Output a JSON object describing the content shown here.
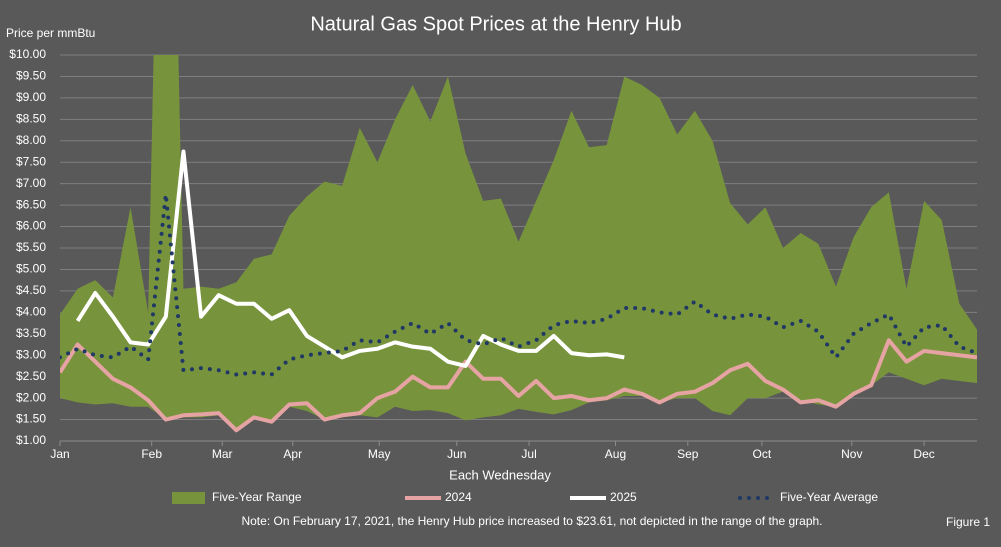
{
  "chart_data": {
    "type": "range_line",
    "title": "Natural Gas Spot Prices at the Henry Hub",
    "y_label": "Price per mmBtu",
    "x_label": "Each Wednesday",
    "note": "Note: On February 17, 2021,  the Henry Hub price increased to $23.61,  not depicted in the range of the graph.",
    "figure_label": "Figure 1",
    "background": "#595959",
    "grid": true,
    "x": [
      0,
      1,
      2,
      3,
      4,
      5,
      6,
      7,
      8,
      9,
      10,
      11,
      12,
      13,
      14,
      15,
      16,
      17,
      18,
      19,
      20,
      21,
      22,
      23,
      24,
      25,
      26,
      27,
      28,
      29,
      30,
      31,
      32,
      33,
      34,
      35,
      36,
      37,
      38,
      39,
      40,
      41,
      42,
      43,
      44,
      45,
      46,
      47,
      48,
      49,
      50,
      51,
      52
    ],
    "xlim": [
      0,
      52
    ],
    "xticks": [
      {
        "value": 0,
        "label": "Jan"
      },
      {
        "value": 5.2,
        "label": "Feb"
      },
      {
        "value": 9.2,
        "label": "Mar"
      },
      {
        "value": 13.2,
        "label": "Apr"
      },
      {
        "value": 18.1,
        "label": "May"
      },
      {
        "value": 22.5,
        "label": "Jun"
      },
      {
        "value": 26.6,
        "label": "Jul"
      },
      {
        "value": 31.5,
        "label": "Aug"
      },
      {
        "value": 35.6,
        "label": "Sep"
      },
      {
        "value": 39.8,
        "label": "Oct"
      },
      {
        "value": 44.9,
        "label": "Nov"
      },
      {
        "value": 49.0,
        "label": "Dec"
      }
    ],
    "ylim": [
      1,
      10
    ],
    "yticks": [
      {
        "value": 1,
        "label": "$1.00"
      },
      {
        "value": 1.5,
        "label": "$1.50"
      },
      {
        "value": 2,
        "label": "$2.00"
      },
      {
        "value": 2.5,
        "label": "$2.50"
      },
      {
        "value": 3,
        "label": "$3.00"
      },
      {
        "value": 3.5,
        "label": "$3.50"
      },
      {
        "value": 4,
        "label": "$4.00"
      },
      {
        "value": 4.5,
        "label": "$4.50"
      },
      {
        "value": 5,
        "label": "$5.00"
      },
      {
        "value": 5.5,
        "label": "$5.50"
      },
      {
        "value": 6,
        "label": "$6.00"
      },
      {
        "value": 6.5,
        "label": "$6.50"
      },
      {
        "value": 7,
        "label": "$7.00"
      },
      {
        "value": 7.5,
        "label": "$7.50"
      },
      {
        "value": 8,
        "label": "$8.00"
      },
      {
        "value": 8.5,
        "label": "$8.50"
      },
      {
        "value": 9,
        "label": "$9.00"
      },
      {
        "value": 9.5,
        "label": "$9.50"
      },
      {
        "value": 10,
        "label": "$10.00"
      }
    ],
    "series": [
      {
        "name": "Five-Year Range",
        "kind": "range",
        "color": "#77933c",
        "high": [
          3.95,
          4.55,
          4.75,
          4.35,
          6.45,
          4.0,
          23.61,
          4.55,
          4.6,
          4.55,
          4.7,
          5.25,
          5.35,
          6.25,
          6.7,
          7.05,
          6.95,
          8.3,
          7.5,
          8.5,
          9.3,
          8.45,
          9.5,
          7.7,
          6.6,
          6.65,
          5.65,
          6.6,
          7.55,
          8.7,
          7.85,
          7.9,
          9.5,
          9.3,
          9.0,
          8.15,
          8.7,
          8.0,
          6.55,
          6.05,
          6.45,
          5.5,
          5.85,
          5.6,
          4.6,
          5.75,
          6.45,
          6.8,
          4.55,
          6.6,
          6.15,
          4.2,
          3.6
        ],
        "low": [
          2.0,
          1.9,
          1.85,
          1.88,
          1.8,
          1.8,
          1.5,
          1.55,
          1.55,
          1.6,
          1.25,
          1.55,
          1.45,
          1.8,
          1.7,
          1.5,
          1.55,
          1.6,
          1.55,
          1.8,
          1.7,
          1.72,
          1.65,
          1.48,
          1.55,
          1.6,
          1.75,
          1.68,
          1.62,
          1.72,
          1.9,
          1.95,
          2.05,
          2.05,
          1.9,
          2.0,
          2.0,
          1.7,
          1.6,
          2.0,
          2.0,
          2.15,
          1.95,
          1.85,
          1.8,
          2.05,
          2.3,
          2.6,
          2.45,
          2.3,
          2.45,
          2.4,
          2.35
        ]
      },
      {
        "name": "2024",
        "kind": "line",
        "color": "#e6a3a3",
        "dash": false,
        "values": [
          2.6,
          3.25,
          2.85,
          2.45,
          2.25,
          1.95,
          1.5,
          1.6,
          1.62,
          1.65,
          1.25,
          1.55,
          1.45,
          1.85,
          1.88,
          1.5,
          1.6,
          1.65,
          2.0,
          2.15,
          2.5,
          2.25,
          2.25,
          2.85,
          2.45,
          2.45,
          2.05,
          2.4,
          2.0,
          2.05,
          1.95,
          2.0,
          2.2,
          2.1,
          1.9,
          2.1,
          2.15,
          2.35,
          2.65,
          2.8,
          2.4,
          2.2,
          1.9,
          1.95,
          1.8,
          2.1,
          2.3,
          3.35,
          2.85,
          3.1,
          3.05,
          3.0,
          2.95
        ]
      },
      {
        "name": "2025",
        "kind": "line",
        "color": "#ffffff",
        "dash": false,
        "values": [
          null,
          3.8,
          4.45,
          3.9,
          3.3,
          3.25,
          3.9,
          7.75,
          3.9,
          4.4,
          4.2,
          4.2,
          3.85,
          4.05,
          3.45,
          3.2,
          2.95,
          3.1,
          3.15,
          3.3,
          3.2,
          3.15,
          2.85,
          2.75,
          3.45,
          3.25,
          3.1,
          3.1,
          3.45,
          3.05,
          3.0,
          3.02,
          2.95,
          null,
          null,
          null,
          null,
          null,
          null,
          null,
          null,
          null,
          null,
          null,
          null,
          null,
          null,
          null,
          null,
          null,
          null,
          null,
          null
        ]
      },
      {
        "name": "Five-Year Average",
        "kind": "line",
        "color": "#1f3864",
        "dash": true,
        "values": [
          2.95,
          3.15,
          3.0,
          2.95,
          3.2,
          2.9,
          6.75,
          2.65,
          2.7,
          2.65,
          2.55,
          2.6,
          2.55,
          2.9,
          3.0,
          3.05,
          3.1,
          3.35,
          3.3,
          3.55,
          3.75,
          3.5,
          3.75,
          3.35,
          3.25,
          3.4,
          3.2,
          3.35,
          3.7,
          3.8,
          3.75,
          3.85,
          4.1,
          4.1,
          4.0,
          3.95,
          4.25,
          3.95,
          3.85,
          3.95,
          3.9,
          3.65,
          3.8,
          3.55,
          2.95,
          3.5,
          3.75,
          3.95,
          3.2,
          3.65,
          3.7,
          3.2,
          3.05
        ]
      }
    ]
  }
}
